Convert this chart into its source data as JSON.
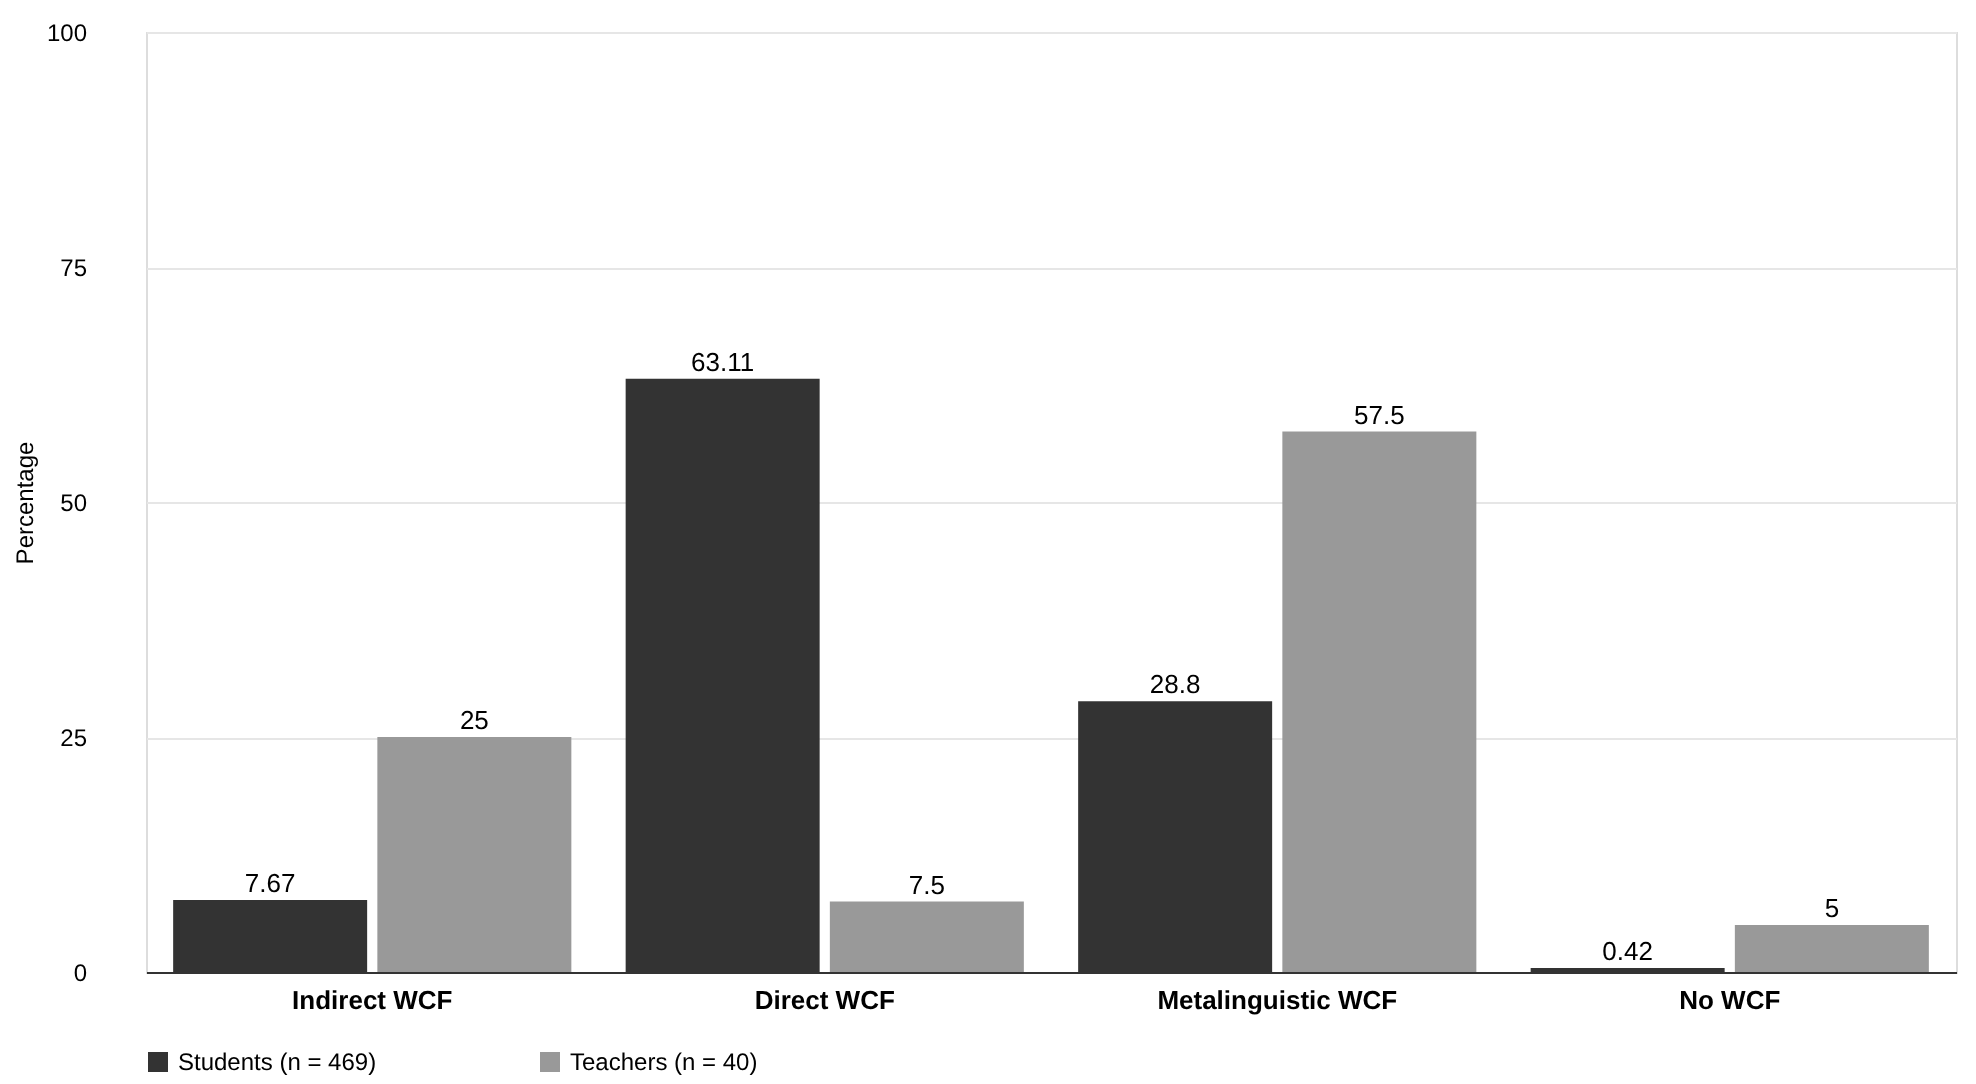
{
  "chart_data": {
    "type": "bar",
    "ylabel": "Percentage",
    "categories": [
      "Indirect WCF",
      "Direct WCF",
      "Metalinguistic WCF",
      "No WCF"
    ],
    "series": [
      {
        "name": "Students (n = 469)",
        "color": "#333333",
        "values": [
          7.67,
          63.11,
          28.8,
          0.42
        ]
      },
      {
        "name": "Teachers (n = 40)",
        "color": "#999999",
        "values": [
          25,
          7.5,
          57.5,
          5
        ]
      }
    ],
    "ylim": [
      0,
      100
    ],
    "yticks": [
      0,
      25,
      50,
      75,
      100
    ],
    "grid": "y",
    "legend": "bottom",
    "data_labels": true
  }
}
